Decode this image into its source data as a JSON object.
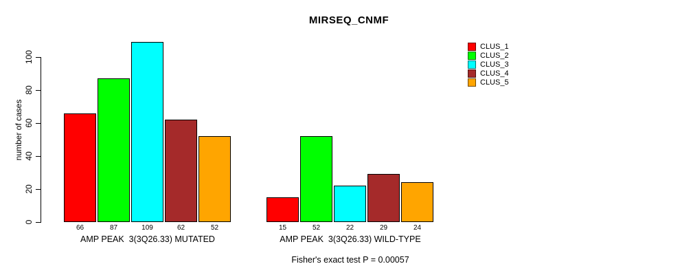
{
  "title": "MIRSEQ_CNMF",
  "footer": "Fisher's exact test P = 0.00057",
  "y_axis": {
    "label": "number of cases",
    "ticks": [
      0,
      20,
      40,
      60,
      80,
      100
    ]
  },
  "chart_data": {
    "type": "bar",
    "title": "MIRSEQ_CNMF",
    "ylabel": "number of cases",
    "xlabel": "",
    "categories": [
      "AMP PEAK  3(3Q26.33) MUTATED",
      "AMP PEAK  3(3Q26.33) WILD-TYPE"
    ],
    "series": [
      {
        "name": "CLUS_1",
        "color": "#ff0000",
        "values": [
          66,
          15
        ]
      },
      {
        "name": "CLUS_2",
        "color": "#00ff00",
        "values": [
          87,
          52
        ]
      },
      {
        "name": "CLUS_3",
        "color": "#00ffff",
        "values": [
          109,
          22
        ]
      },
      {
        "name": "CLUS_4",
        "color": "#a52a2a",
        "values": [
          62,
          29
        ]
      },
      {
        "name": "CLUS_5",
        "color": "#ffa500",
        "values": [
          52,
          24
        ]
      }
    ],
    "yticks": [
      0,
      20,
      40,
      60,
      80,
      100
    ],
    "ylim": [
      0,
      109
    ],
    "grid": false,
    "bar_value_labels": true,
    "legend_position": "right",
    "annotation": "Fisher's exact test P = 0.00057"
  },
  "legend": {
    "items": [
      "CLUS_1",
      "CLUS_2",
      "CLUS_3",
      "CLUS_4",
      "CLUS_5"
    ]
  }
}
